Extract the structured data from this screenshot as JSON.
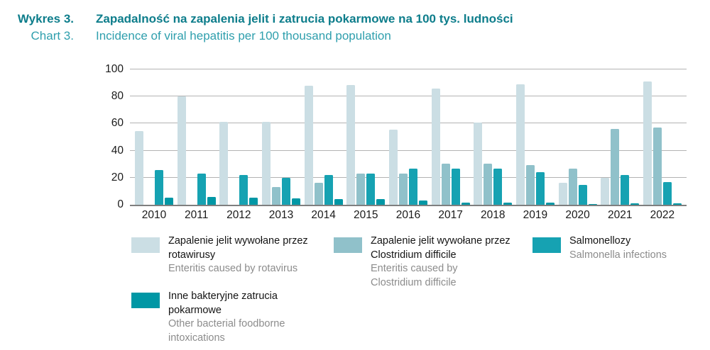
{
  "header": {
    "label_pl": "Wykres 3.",
    "label_en": "Chart 3.",
    "title_pl": "Zapadalność na zapalenia jelit i zatrucia pokarmowe na 100 tys. ludności",
    "title_en": "Incidence of viral hepatitis per 100 thousand population"
  },
  "chart_data": {
    "type": "bar",
    "title_pl": "Zapadalność na zapalenia jelit i zatrucia pokarmowe na 100 tys. ludności",
    "title_en": "Incidence of viral hepatitis per 100 thousand population",
    "categories": [
      "2010",
      "2011",
      "2012",
      "2013",
      "2014",
      "2015",
      "2016",
      "2017",
      "2018",
      "2019",
      "2020",
      "2021",
      "2022"
    ],
    "series": [
      {
        "label_pl": "Zapalenie jelit wywołane przez rotawirusy",
        "label_en": "Enteritis caused by rotavirus",
        "color": "#cbdee4",
        "values": [
          54.5,
          80,
          61.5,
          61.5,
          88,
          88.5,
          55.5,
          86,
          60.5,
          89,
          16,
          20,
          91
        ]
      },
      {
        "label_pl": "Zapalenie jelit wywołane przez Clostridium difficile",
        "label_en": "Enteritis caused by Clostridium difficile",
        "color": "#90c1ca",
        "values": [
          0,
          0,
          0,
          13,
          16.5,
          23,
          23,
          30.5,
          30.5,
          29.5,
          26.5,
          56,
          57
        ]
      },
      {
        "label_pl": "Salmonellozy",
        "label_en": "Salmonella infections",
        "color": "#16a2b2",
        "values": [
          25.5,
          23,
          22,
          20,
          22,
          23,
          26.5,
          26.5,
          26.5,
          24,
          14.5,
          22,
          17
        ]
      },
      {
        "label_pl": "Inne bakteryjne zatrucia pokarmowe",
        "label_en": "Other bacterial foodborne intoxications",
        "color": "#0097a5",
        "values": [
          5.5,
          6,
          5,
          4.5,
          4,
          4,
          3,
          1.5,
          1.5,
          1.5,
          0.5,
          1,
          1
        ]
      }
    ],
    "ylim": [
      0,
      100
    ],
    "yticks": [
      0,
      20,
      40,
      60,
      80,
      100
    ],
    "grid": true,
    "legend_position": "bottom"
  },
  "colors": {
    "title_dark_teal": "#0d7d8b",
    "title_light_teal": "#2f9fad",
    "gridline": "#b3b3b3",
    "baseline": "#7f7f7f",
    "axis_text": "#1a1a1a",
    "legend_secondary_text": "#8c8c8c",
    "background": "#ffffff"
  }
}
